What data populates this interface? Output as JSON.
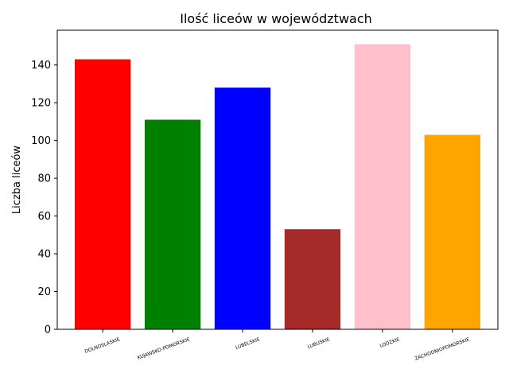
{
  "chart_data": {
    "type": "bar",
    "title": "Ilość liceów w województwach",
    "xlabel": "",
    "ylabel": "Liczba liceów",
    "categories": [
      "DOLNOSLASKIE",
      "KUJAWSKO-POMORSKIE",
      "LUBELSKIE",
      "LUBUSKIE",
      "LODZKIE",
      "ZACHODNIOPOMORSKIE"
    ],
    "values": [
      143,
      111,
      128,
      53,
      151,
      103
    ],
    "colors": [
      "#ff0000",
      "#008000",
      "#0000ff",
      "#a52a2a",
      "#ffc0cb",
      "#ffa500"
    ],
    "ylim": [
      0,
      158.4
    ],
    "yticks": [
      0,
      20,
      40,
      60,
      80,
      100,
      120,
      140
    ],
    "grid": false,
    "legend": "none"
  }
}
